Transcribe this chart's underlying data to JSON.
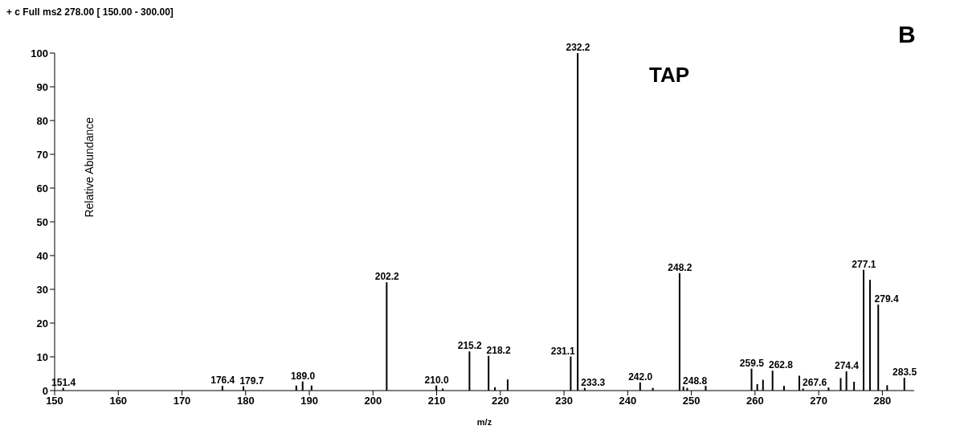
{
  "chart_data": {
    "type": "bar",
    "title": "+ c Full ms2 278.00 [ 150.00 - 300.00]",
    "xlabel": "m/z",
    "ylabel": "Relative Abundance",
    "annotations": [
      "TAP",
      "B",
      {
        "text": "151.4",
        "x": 151.4,
        "y": 0.8
      },
      {
        "text": "176.4",
        "x": 176.4,
        "y": 1.4
      },
      {
        "text": "179.7",
        "x": 179.7,
        "y": 1.3
      },
      {
        "text": "189.0",
        "x": 189.0,
        "y": 2.7
      },
      {
        "text": "202.2",
        "x": 202.2,
        "y": 32.1
      },
      {
        "text": "210.0",
        "x": 210.0,
        "y": 1.5
      },
      {
        "text": "215.2",
        "x": 215.2,
        "y": 11.6
      },
      {
        "text": "218.2",
        "x": 218.2,
        "y": 10.3
      },
      {
        "text": "231.1",
        "x": 231.1,
        "y": 10.1
      },
      {
        "text": "232.2",
        "x": 232.2,
        "y": 100
      },
      {
        "text": "233.3",
        "x": 233.3,
        "y": 0.8
      },
      {
        "text": "242.0",
        "x": 242.0,
        "y": 2.4
      },
      {
        "text": "248.2",
        "x": 248.2,
        "y": 34.8
      },
      {
        "text": "248.8",
        "x": 248.8,
        "y": 1.2
      },
      {
        "text": "259.5",
        "x": 259.5,
        "y": 6.5
      },
      {
        "text": "262.8",
        "x": 262.8,
        "y": 5.9
      },
      {
        "text": "267.6",
        "x": 267.6,
        "y": 0.6
      },
      {
        "text": "274.4",
        "x": 274.4,
        "y": 5.7
      },
      {
        "text": "277.1",
        "x": 277.1,
        "y": 35.8
      },
      {
        "text": "279.4",
        "x": 279.4,
        "y": 25.5
      },
      {
        "text": "283.5",
        "x": 283.5,
        "y": 3.8
      }
    ],
    "x": [
      151.4,
      176.4,
      179.7,
      188.0,
      189.0,
      190.4,
      202.2,
      210.0,
      211.0,
      215.2,
      218.2,
      219.2,
      221.2,
      231.1,
      232.2,
      233.3,
      242.0,
      244.0,
      248.2,
      248.8,
      249.4,
      252.3,
      259.5,
      260.4,
      261.3,
      262.8,
      264.6,
      267.0,
      267.6,
      271.6,
      273.5,
      274.4,
      275.6,
      277.1,
      278.1,
      279.4,
      280.8,
      283.5
    ],
    "values": [
      0.8,
      1.4,
      1.3,
      1.5,
      2.7,
      1.5,
      32.1,
      1.5,
      0.6,
      11.6,
      10.3,
      1.0,
      3.3,
      10.1,
      100,
      0.8,
      2.4,
      0.8,
      34.8,
      1.2,
      0.8,
      1.4,
      6.5,
      1.9,
      3.2,
      5.9,
      1.4,
      4.4,
      0.6,
      0.9,
      3.7,
      5.7,
      2.6,
      35.8,
      32.8,
      25.5,
      1.6,
      3.8
    ],
    "color": "#000000",
    "xlim": [
      150,
      285
    ],
    "xticks": [
      150,
      160,
      170,
      180,
      190,
      200,
      210,
      220,
      230,
      240,
      250,
      260,
      270,
      280
    ],
    "ylim": [
      0,
      100
    ],
    "yticks": [
      0,
      10,
      20,
      30,
      40,
      50,
      60,
      70,
      80,
      90,
      100
    ]
  }
}
